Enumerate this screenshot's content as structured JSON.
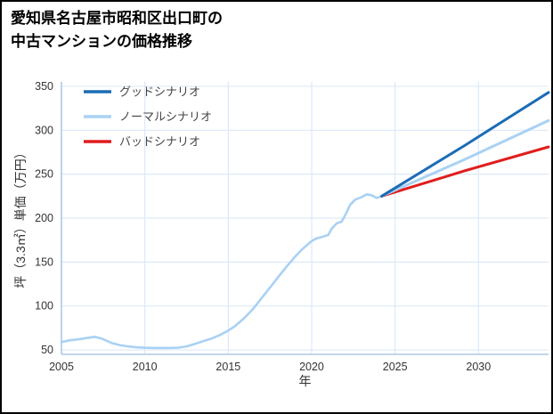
{
  "title": {
    "line1": "愛知県名古屋市昭和区出口町の",
    "line2": "中古マンションの価格推移"
  },
  "chart_data": {
    "type": "line",
    "title": "愛知県名古屋市昭和区出口町の中古マンションの価格推移",
    "xlabel": "年",
    "ylabel": "坪（3.3㎡）単価（万円）",
    "xlim": [
      2005,
      2034.2
    ],
    "ylim": [
      45,
      355
    ],
    "xticks": [
      2005,
      2010,
      2015,
      2020,
      2025,
      2030
    ],
    "yticks": [
      50,
      100,
      150,
      200,
      250,
      300,
      350
    ],
    "grid": true,
    "legend_position": "top-left",
    "colors": {
      "grid": "#dce9f8",
      "axis": "#afc9e2",
      "tick": "#333333",
      "legend_text": "#444444",
      "good": "#1b6cb5",
      "normal": "#a9d1f4",
      "bad": "#e11d1d"
    },
    "series": [
      {
        "id": "history",
        "label": null,
        "color": "#a9d1f4",
        "width": 2.6,
        "points": [
          [
            2005,
            59
          ],
          [
            2005.5,
            61
          ],
          [
            2006,
            62
          ],
          [
            2006.5,
            63.5
          ],
          [
            2007,
            65
          ],
          [
            2007.4,
            63
          ],
          [
            2008,
            58
          ],
          [
            2008.5,
            55.5
          ],
          [
            2009,
            54
          ],
          [
            2009.5,
            53
          ],
          [
            2010,
            52.5
          ],
          [
            2010.5,
            52.3
          ],
          [
            2011,
            52.3
          ],
          [
            2011.5,
            52.3
          ],
          [
            2012,
            52.6
          ],
          [
            2012.5,
            54
          ],
          [
            2013,
            57
          ],
          [
            2013.5,
            60
          ],
          [
            2014,
            63
          ],
          [
            2014.5,
            67
          ],
          [
            2015,
            72
          ],
          [
            2015.4,
            77
          ],
          [
            2016,
            87
          ],
          [
            2016.5,
            97
          ],
          [
            2017,
            109
          ],
          [
            2017.5,
            121
          ],
          [
            2018,
            133
          ],
          [
            2018.5,
            145
          ],
          [
            2019,
            156
          ],
          [
            2019.4,
            164
          ],
          [
            2020,
            174
          ],
          [
            2020.3,
            177
          ],
          [
            2020.7,
            179
          ],
          [
            2021,
            181
          ],
          [
            2021.2,
            188
          ],
          [
            2021.5,
            194
          ],
          [
            2021.8,
            196
          ],
          [
            2022,
            203
          ],
          [
            2022.3,
            215
          ],
          [
            2022.6,
            221
          ],
          [
            2023,
            224
          ],
          [
            2023.3,
            227
          ],
          [
            2023.6,
            226
          ],
          [
            2023.9,
            223
          ],
          [
            2024.2,
            225
          ]
        ]
      },
      {
        "id": "good",
        "label": "グッドシナリオ",
        "color": "#1b6cb5",
        "width": 3,
        "points": [
          [
            2024.2,
            225
          ],
          [
            2029.2,
            283
          ],
          [
            2034.2,
            343
          ]
        ]
      },
      {
        "id": "normal",
        "label": "ノーマルシナリオ",
        "color": "#a9d1f4",
        "width": 3,
        "points": [
          [
            2024.2,
            225
          ],
          [
            2029.2,
            267
          ],
          [
            2034.2,
            311
          ]
        ]
      },
      {
        "id": "bad",
        "label": "バッドシナリオ",
        "color": "#e11d1d",
        "width": 3,
        "points": [
          [
            2024.2,
            225
          ],
          [
            2029.2,
            254
          ],
          [
            2034.2,
            281
          ]
        ]
      }
    ]
  }
}
